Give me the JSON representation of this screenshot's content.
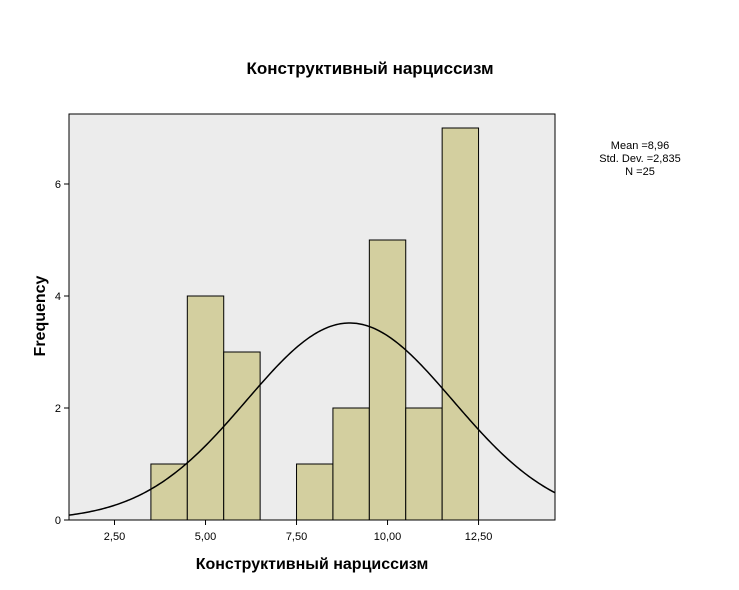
{
  "chart_data": {
    "type": "bar",
    "subtype": "histogram",
    "title": "Конструктивный нарциссизм",
    "xlabel": "Конструктивный нарциссизм",
    "ylabel": "Frequency",
    "xlim": [
      1.25,
      14.6
    ],
    "ylim": [
      0,
      7.25
    ],
    "x_ticks": [
      {
        "value": 2.5,
        "label": "2,50"
      },
      {
        "value": 5.0,
        "label": "5,00"
      },
      {
        "value": 7.5,
        "label": "7,50"
      },
      {
        "value": 10.0,
        "label": "10,00"
      },
      {
        "value": 12.5,
        "label": "12,50"
      }
    ],
    "y_ticks": [
      {
        "value": 0,
        "label": "0"
      },
      {
        "value": 2,
        "label": "2"
      },
      {
        "value": 4,
        "label": "4"
      },
      {
        "value": 6,
        "label": "6"
      }
    ],
    "bins": [
      {
        "x0": 3.5,
        "x1": 4.5,
        "count": 1
      },
      {
        "x0": 4.5,
        "x1": 5.5,
        "count": 4
      },
      {
        "x0": 5.5,
        "x1": 6.5,
        "count": 3
      },
      {
        "x0": 7.5,
        "x1": 8.5,
        "count": 1
      },
      {
        "x0": 8.5,
        "x1": 9.5,
        "count": 2
      },
      {
        "x0": 9.5,
        "x1": 10.5,
        "count": 5
      },
      {
        "x0": 10.5,
        "x1": 11.5,
        "count": 2
      },
      {
        "x0": 11.5,
        "x1": 12.5,
        "count": 7
      }
    ],
    "normal_curve": {
      "mean": 8.96,
      "sd": 2.835,
      "n": 25,
      "bin_width": 1
    },
    "stats_text": [
      "Mean =8,96",
      "Std. Dev. =2,835",
      "N =25"
    ],
    "colors": {
      "bar_fill": "#d3cf9f",
      "plot_bg": "#ececec",
      "stroke": "#000000"
    },
    "grid": false
  }
}
